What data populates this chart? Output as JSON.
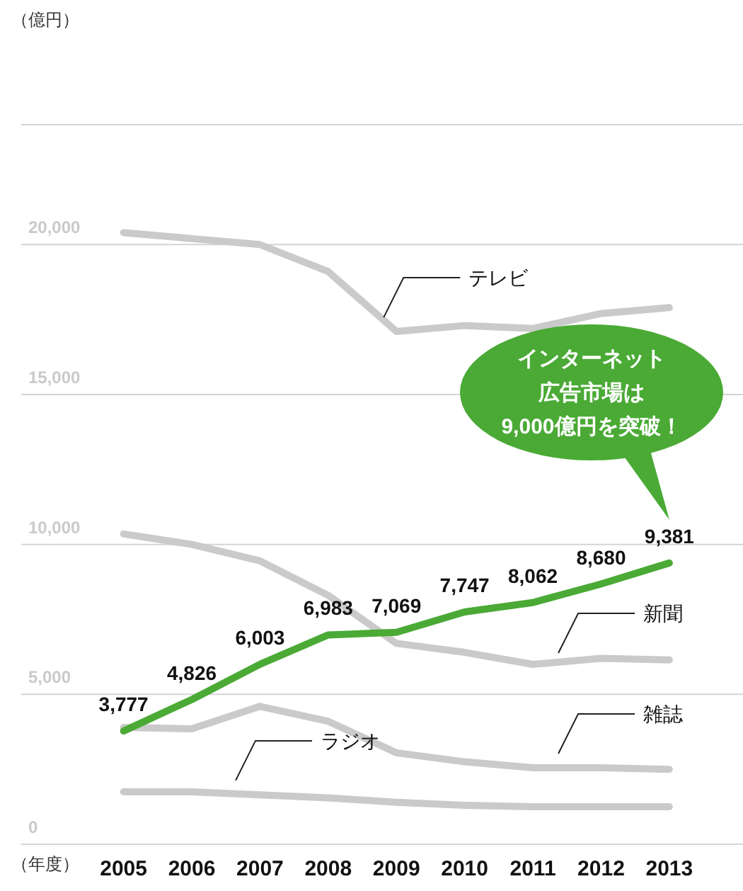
{
  "chart_data": {
    "type": "line",
    "xlabel": "（年度）",
    "categories": [
      "2005",
      "2006",
      "2007",
      "2008",
      "2009",
      "2010",
      "2011",
      "2012",
      "2013"
    ],
    "ylim": [
      0,
      24000
    ],
    "yticks": [
      {
        "value": 0,
        "label": "0"
      },
      {
        "value": 5000,
        "label": "5,000"
      },
      {
        "value": 10000,
        "label": "10,000"
      },
      {
        "value": 15000,
        "label": "15,000"
      },
      {
        "value": 20000,
        "label": "20,000"
      }
    ],
    "grid": "y",
    "legend": false,
    "marker": "none",
    "line_style": "solid",
    "series": [
      {
        "name": "テレビ",
        "color": "#c9cac9",
        "values": [
          20400,
          20200,
          20000,
          19100,
          17100,
          17300,
          17200,
          17700,
          17900
        ]
      },
      {
        "name": "新聞",
        "color": "#c9cac9",
        "values": [
          10350,
          10000,
          9450,
          8300,
          6700,
          6400,
          6000,
          6200,
          6150
        ]
      },
      {
        "name": "雑誌",
        "color": "#c9cac9",
        "values": [
          3900,
          3850,
          4600,
          4100,
          3050,
          2750,
          2550,
          2550,
          2500
        ]
      },
      {
        "name": "ラジオ",
        "color": "#c9cac9",
        "values": [
          1750,
          1750,
          1650,
          1550,
          1400,
          1300,
          1250,
          1250,
          1250
        ]
      },
      {
        "color": "#4aaa35",
        "values": [
          3777,
          4826,
          6003,
          6983,
          7069,
          7747,
          8062,
          8680,
          9381
        ],
        "value_labels": [
          "3,777",
          "4,826",
          "6,003",
          "6,983",
          "7,069",
          "7,747",
          "8,062",
          "8,680",
          "9,381"
        ]
      }
    ],
    "annotations": [
      "（億円）",
      "インターネット広告市場は9,000億円を突破！"
    ]
  }
}
